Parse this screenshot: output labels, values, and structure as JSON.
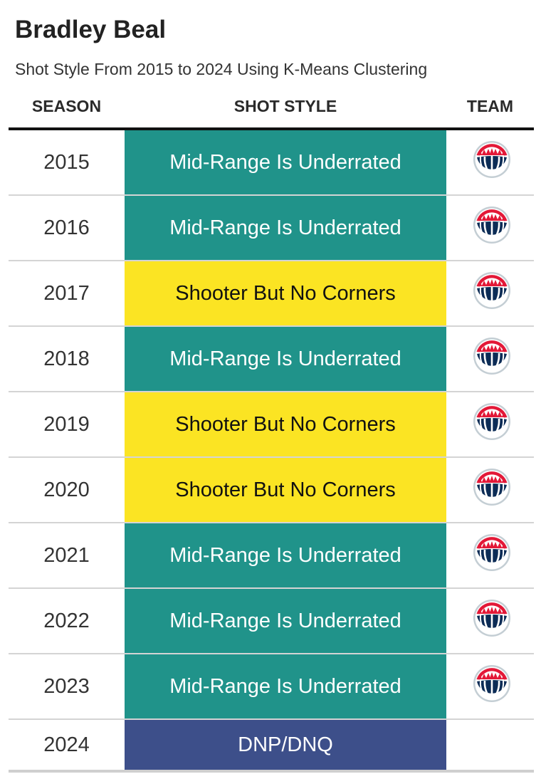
{
  "title": "Bradley Beal",
  "subtitle": "Shot Style From 2015 to 2024 Using K-Means Clustering",
  "headers": {
    "season": "SEASON",
    "style": "SHOT STYLE",
    "team": "TEAM"
  },
  "colors": {
    "Mid-Range Is Underrated": {
      "bg": "#20938a",
      "fg": "#ffffff"
    },
    "Shooter But No Corners": {
      "bg": "#fbe423",
      "fg": "#111111"
    },
    "DNP/DNQ": {
      "bg": "#3d4f8a",
      "fg": "#ffffff"
    },
    "logo_navy": "#0c2c56",
    "logo_red": "#e31837",
    "logo_silver": "#c4ced4"
  },
  "chart_data": {
    "type": "table",
    "title": "Bradley Beal",
    "subtitle": "Shot Style From 2015 to 2024 Using K-Means Clustering",
    "columns": [
      "SEASON",
      "SHOT STYLE",
      "TEAM"
    ],
    "rows": [
      {
        "season": "2015",
        "style": "Mid-Range Is Underrated",
        "team": "wizards-logo-icon"
      },
      {
        "season": "2016",
        "style": "Mid-Range Is Underrated",
        "team": "wizards-logo-icon"
      },
      {
        "season": "2017",
        "style": "Shooter But No Corners",
        "team": "wizards-logo-icon"
      },
      {
        "season": "2018",
        "style": "Mid-Range Is Underrated",
        "team": "wizards-logo-icon"
      },
      {
        "season": "2019",
        "style": "Shooter But No Corners",
        "team": "wizards-logo-icon"
      },
      {
        "season": "2020",
        "style": "Shooter But No Corners",
        "team": "wizards-logo-icon"
      },
      {
        "season": "2021",
        "style": "Mid-Range Is Underrated",
        "team": "wizards-logo-icon"
      },
      {
        "season": "2022",
        "style": "Mid-Range Is Underrated",
        "team": "wizards-logo-icon"
      },
      {
        "season": "2023",
        "style": "Mid-Range Is Underrated",
        "team": "wizards-logo-icon"
      },
      {
        "season": "2024",
        "style": "DNP/DNQ",
        "team": ""
      }
    ]
  }
}
